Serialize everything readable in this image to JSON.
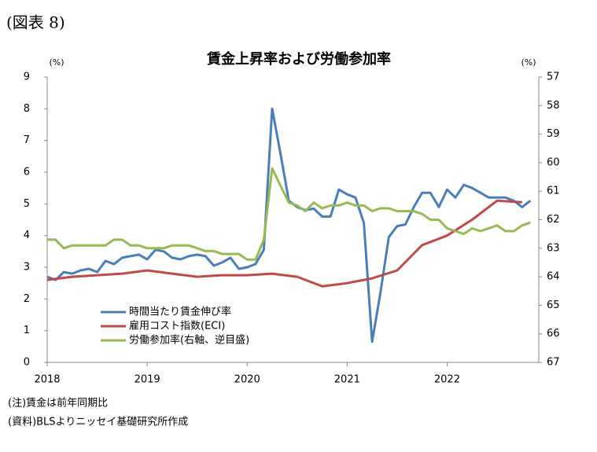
{
  "header": "(図表 8)",
  "notes": [
    "(注)賃金は前年同期比",
    "(資料)BLSよりニッセイ基礎研究所作成"
  ],
  "chart_data": {
    "type": "line",
    "title": "賃金上昇率および労働参加率",
    "y_unit": "(%)",
    "y2_unit": "(%)",
    "xlim": [
      2018,
      2022.917
    ],
    "xticks": [
      2018,
      2019,
      2020,
      2021,
      2022
    ],
    "ylim": [
      0,
      9
    ],
    "yticks": [
      0,
      1,
      2,
      3,
      4,
      5,
      6,
      7,
      8,
      9
    ],
    "y2lim": [
      67,
      57
    ],
    "y2ticks": [
      67,
      66,
      65,
      64,
      63,
      62,
      61,
      60,
      59,
      58,
      57
    ],
    "legend": "lower left",
    "series": [
      {
        "name": "時間当たり賃金伸び率",
        "color": "#4a7ebb",
        "x": [
          2018,
          2018.083,
          2018.167,
          2018.25,
          2018.333,
          2018.417,
          2018.5,
          2018.583,
          2018.667,
          2018.75,
          2018.833,
          2018.917,
          2019,
          2019.083,
          2019.167,
          2019.25,
          2019.333,
          2019.417,
          2019.5,
          2019.583,
          2019.667,
          2019.75,
          2019.833,
          2019.917,
          2020,
          2020.083,
          2020.167,
          2020.25,
          2020.333,
          2020.417,
          2020.5,
          2020.583,
          2020.667,
          2020.75,
          2020.833,
          2020.917,
          2021,
          2021.083,
          2021.167,
          2021.25,
          2021.333,
          2021.417,
          2021.5,
          2021.583,
          2021.667,
          2021.75,
          2021.833,
          2021.917,
          2022,
          2022.083,
          2022.167,
          2022.25,
          2022.333,
          2022.417,
          2022.5,
          2022.583,
          2022.667,
          2022.75,
          2022.833
        ],
        "values": [
          2.7,
          2.6,
          2.85,
          2.8,
          2.9,
          2.95,
          2.85,
          3.2,
          3.1,
          3.3,
          3.35,
          3.4,
          3.25,
          3.55,
          3.5,
          3.3,
          3.25,
          3.35,
          3.4,
          3.35,
          3.05,
          3.15,
          3.3,
          2.95,
          3.0,
          3.1,
          3.55,
          8.0,
          6.6,
          5.1,
          4.9,
          4.8,
          4.85,
          4.6,
          4.6,
          5.45,
          5.3,
          5.2,
          4.4,
          0.65,
          2.2,
          3.95,
          4.3,
          4.35,
          4.9,
          5.35,
          5.35,
          4.9,
          5.45,
          5.2,
          5.6,
          5.5,
          5.35,
          5.2,
          5.2,
          5.2,
          5.1,
          4.9,
          5.1
        ]
      },
      {
        "name": "雇用コスト指数(ECI)",
        "color": "#be4b48",
        "x": [
          2018,
          2018.25,
          2018.5,
          2018.75,
          2019,
          2019.25,
          2019.5,
          2019.75,
          2020,
          2020.25,
          2020.5,
          2020.75,
          2021,
          2021.25,
          2021.5,
          2021.75,
          2022,
          2022.25,
          2022.5,
          2022.75
        ],
        "values": [
          2.6,
          2.7,
          2.75,
          2.8,
          2.9,
          2.8,
          2.7,
          2.75,
          2.75,
          2.8,
          2.7,
          2.4,
          2.5,
          2.65,
          2.9,
          3.7,
          4.0,
          4.5,
          5.1,
          5.05
        ]
      },
      {
        "name": "労働参加率(右軸、逆目盛)",
        "color": "#98b954",
        "axis": "y2",
        "x": [
          2018,
          2018.083,
          2018.167,
          2018.25,
          2018.333,
          2018.417,
          2018.5,
          2018.583,
          2018.667,
          2018.75,
          2018.833,
          2018.917,
          2019,
          2019.083,
          2019.167,
          2019.25,
          2019.333,
          2019.417,
          2019.5,
          2019.583,
          2019.667,
          2019.75,
          2019.833,
          2019.917,
          2020,
          2020.083,
          2020.167,
          2020.25,
          2020.333,
          2020.417,
          2020.5,
          2020.583,
          2020.667,
          2020.75,
          2020.833,
          2020.917,
          2021,
          2021.083,
          2021.167,
          2021.25,
          2021.333,
          2021.417,
          2021.5,
          2021.583,
          2021.667,
          2021.75,
          2021.833,
          2021.917,
          2022,
          2022.083,
          2022.167,
          2022.25,
          2022.333,
          2022.417,
          2022.5,
          2022.583,
          2022.667,
          2022.75,
          2022.833
        ],
        "values": [
          62.7,
          62.7,
          63.0,
          62.9,
          62.9,
          62.9,
          62.9,
          62.9,
          62.7,
          62.7,
          62.9,
          62.9,
          63.0,
          63.0,
          63.0,
          62.9,
          62.9,
          62.9,
          63.0,
          63.1,
          63.1,
          63.2,
          63.2,
          63.2,
          63.4,
          63.4,
          62.7,
          60.2,
          60.8,
          61.4,
          61.5,
          61.7,
          61.4,
          61.6,
          61.5,
          61.5,
          61.4,
          61.5,
          61.5,
          61.7,
          61.6,
          61.6,
          61.7,
          61.7,
          61.7,
          61.8,
          62.0,
          62.0,
          62.3,
          62.4,
          62.5,
          62.3,
          62.4,
          62.3,
          62.2,
          62.4,
          62.4,
          62.2,
          62.1
        ]
      }
    ]
  }
}
